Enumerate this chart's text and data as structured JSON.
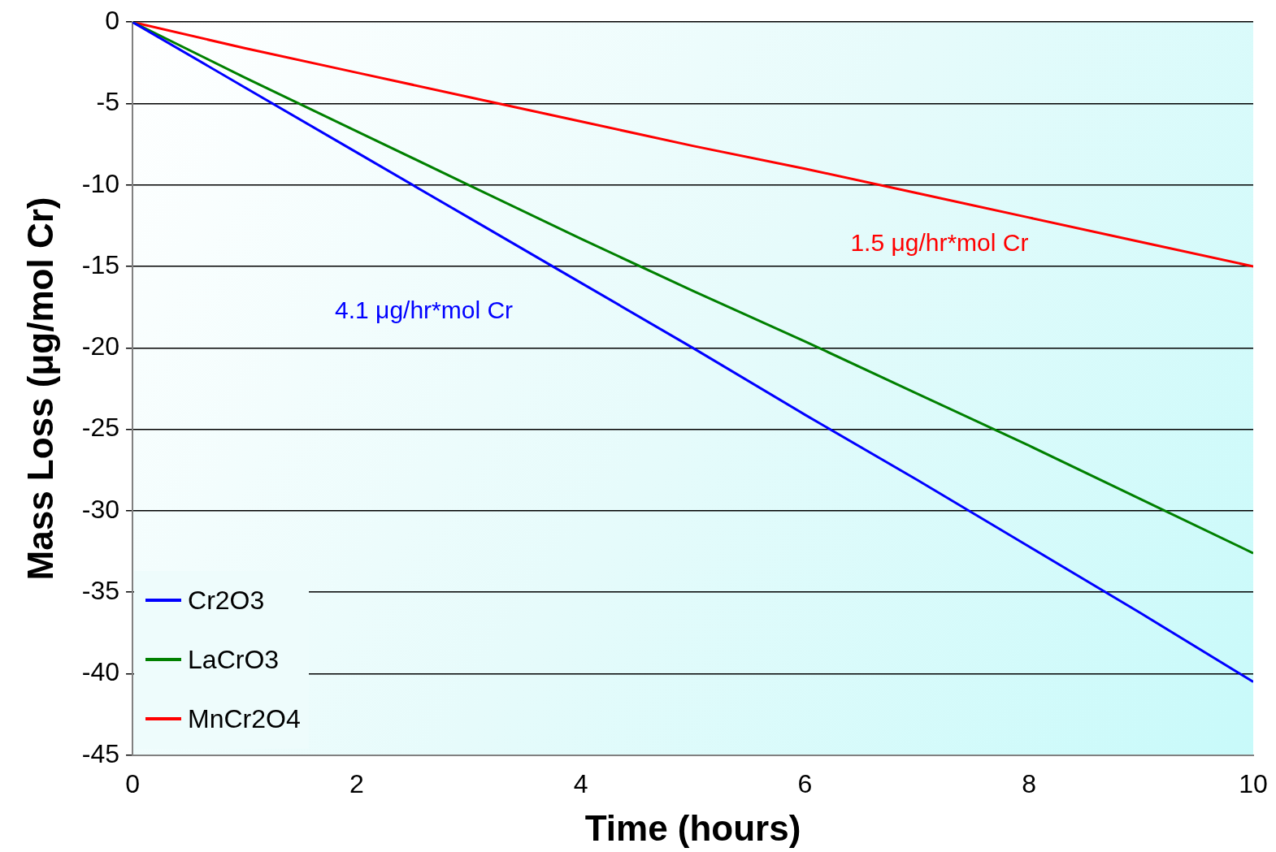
{
  "chart_data": {
    "type": "line",
    "xlabel": "Time (hours)",
    "ylabel": "Mass Loss (μg/mol Cr)",
    "x": [
      0,
      1,
      2,
      3,
      4,
      5,
      6,
      7,
      8,
      9,
      10
    ],
    "series": [
      {
        "name": "Cr2O3",
        "color": "#0000ff",
        "values": [
          0,
          -4.0,
          -8.0,
          -12.0,
          -16.0,
          -20.0,
          -24.1,
          -28.1,
          -32.2,
          -36.3,
          -40.5
        ]
      },
      {
        "name": "LaCrO3",
        "color": "#008000",
        "values": [
          0,
          -3.4,
          -6.7,
          -10.0,
          -13.3,
          -16.5,
          -19.6,
          -22.8,
          -26.0,
          -29.3,
          -32.6
        ]
      },
      {
        "name": "MnCr2O4",
        "color": "#ff0000",
        "values": [
          0,
          -1.6,
          -3.1,
          -4.6,
          -6.1,
          -7.6,
          -9.0,
          -10.5,
          -12.0,
          -13.5,
          -15.0
        ]
      }
    ],
    "xlim": [
      0,
      10
    ],
    "xticks": [
      0,
      2,
      4,
      6,
      8,
      10
    ],
    "ylim": [
      -45,
      0
    ],
    "yticks": [
      -45,
      -40,
      -35,
      -30,
      -25,
      -20,
      -15,
      -10,
      -5,
      0
    ],
    "grid": "y",
    "legend": "bottom left",
    "marker": "none",
    "line_style": "solid",
    "annotations": [
      "4.1 μg/hr*mol Cr",
      "1.5 μg/hr*mol Cr"
    ]
  }
}
